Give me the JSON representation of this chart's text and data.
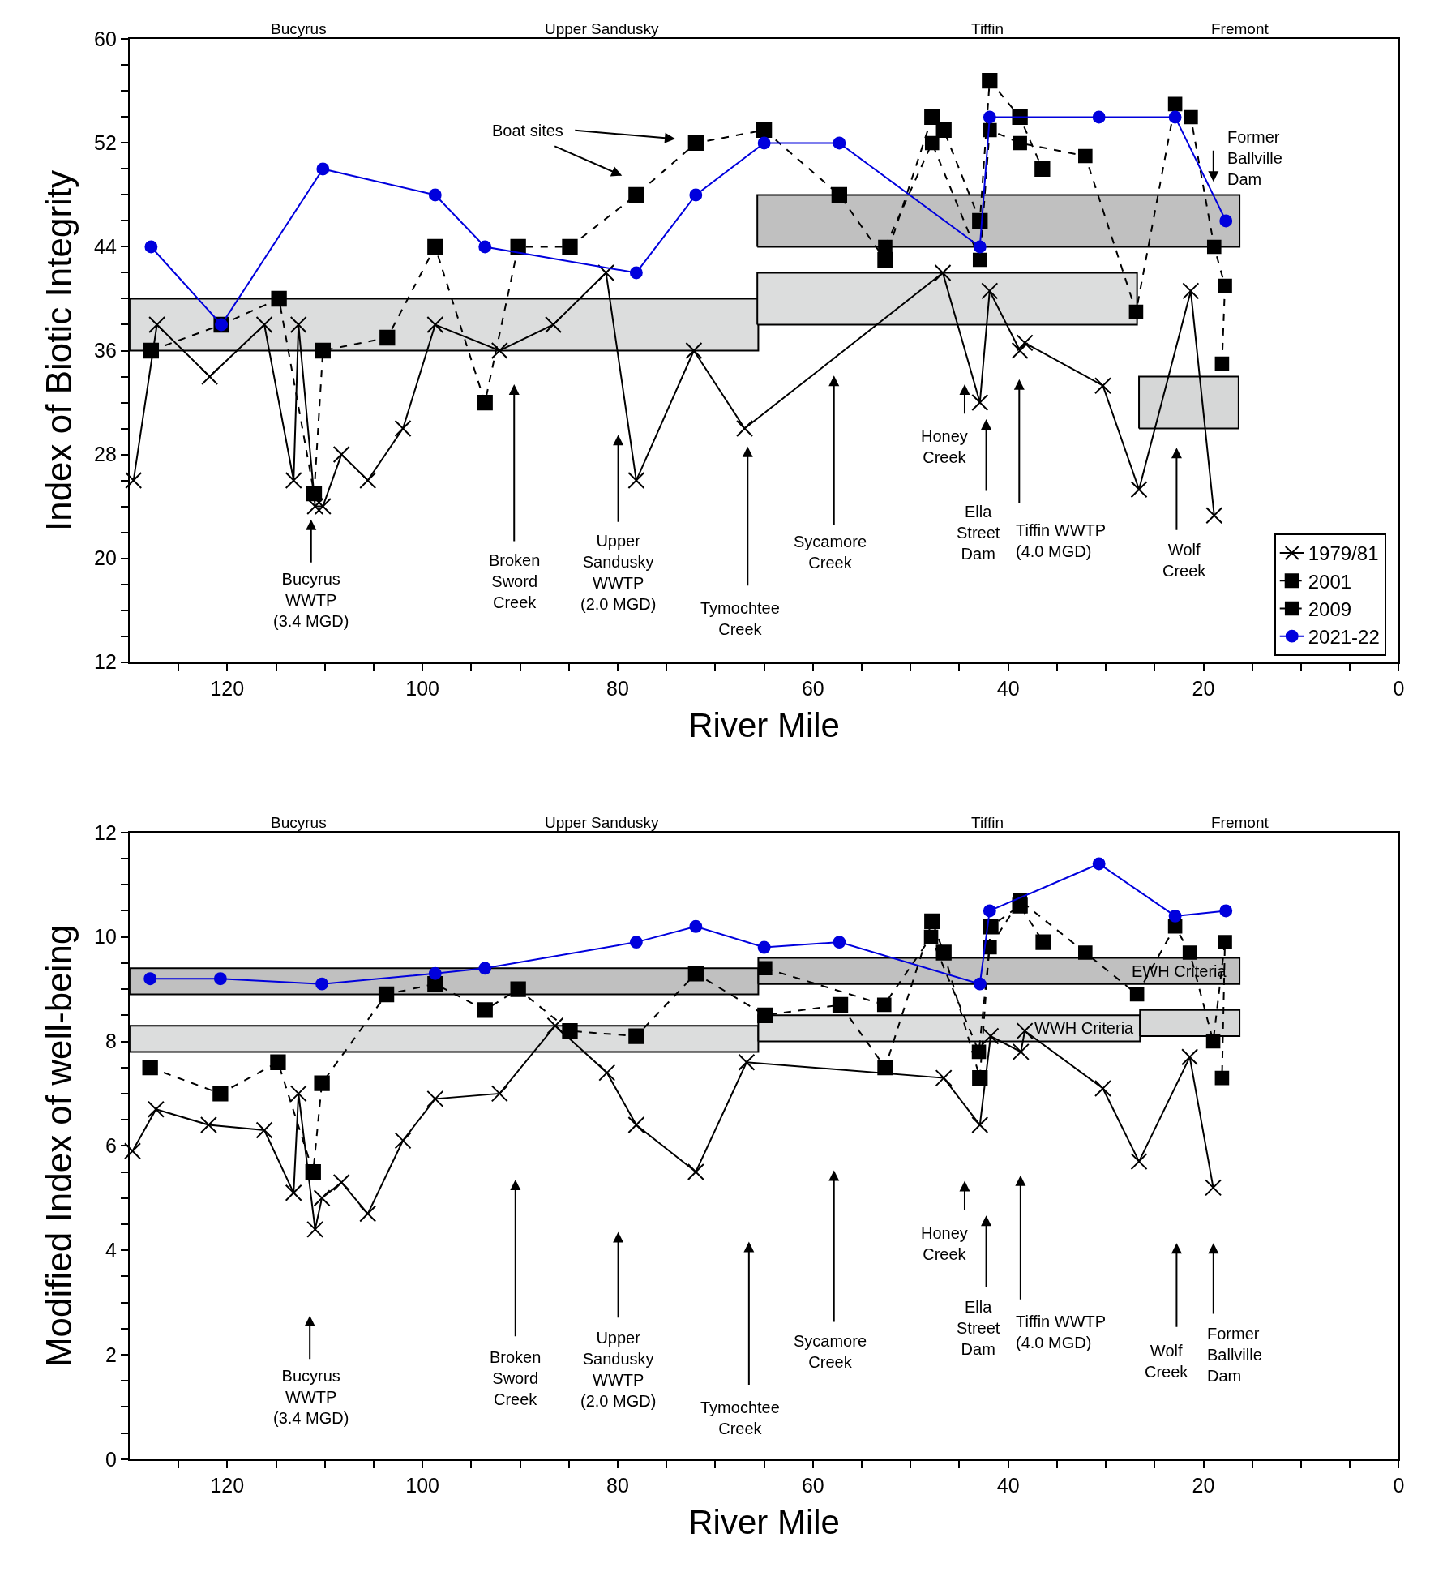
{
  "chart_data": [
    {
      "type": "line",
      "xlabel": "River Mile",
      "ylabel": "Index of Biotic Integrity",
      "xlim": [
        130,
        0
      ],
      "ylim": [
        12,
        60
      ],
      "xticks": [
        {
          "value": 125,
          "label": null
        },
        120,
        {
          "value": 115,
          "label": null
        },
        {
          "value": 110,
          "label": null
        },
        {
          "value": 105,
          "label": null
        },
        100,
        {
          "value": 95,
          "label": null
        },
        {
          "value": 90,
          "label": null
        },
        {
          "value": 85,
          "label": null
        },
        80,
        {
          "value": 75,
          "label": null
        },
        {
          "value": 70,
          "label": null
        },
        {
          "value": 65,
          "label": null
        },
        60,
        {
          "value": 55,
          "label": null
        },
        {
          "value": 50,
          "label": null
        },
        {
          "value": 45,
          "label": null
        },
        40,
        {
          "value": 35,
          "label": null
        },
        {
          "value": 30,
          "label": null
        },
        {
          "value": 25,
          "label": null
        },
        20,
        {
          "value": 15,
          "label": null
        },
        {
          "value": 10,
          "label": null
        },
        {
          "value": 5,
          "label": null
        },
        0
      ],
      "yticks": [
        12,
        {
          "value": 14,
          "label": null
        },
        {
          "value": 16,
          "label": null
        },
        {
          "value": 18,
          "label": null
        },
        20,
        {
          "value": 22,
          "label": null
        },
        {
          "value": 24,
          "label": null
        },
        {
          "value": 26,
          "label": null
        },
        28,
        {
          "value": 30,
          "label": null
        },
        {
          "value": 32,
          "label": null
        },
        {
          "value": 34,
          "label": null
        },
        36,
        {
          "value": 38,
          "label": null
        },
        {
          "value": 40,
          "label": null
        },
        {
          "value": 42,
          "label": null
        },
        44,
        {
          "value": 46,
          "label": null
        },
        {
          "value": 48,
          "label": null
        },
        {
          "value": 50,
          "label": null
        },
        52,
        {
          "value": 54,
          "label": null
        },
        {
          "value": 56,
          "label": null
        },
        {
          "value": 58,
          "label": null
        },
        60
      ],
      "legend": "bottom right",
      "series": [
        {
          "type": "area",
          "color": "#dcdddd",
          "x": [
            130,
            65.6,
            65.6,
            130,
            130
          ],
          "values": [
            36,
            36,
            40,
            40,
            36
          ]
        },
        {
          "type": "area",
          "color": "#dcdddd",
          "x": [
            65.7,
            26.8,
            26.8,
            65.7,
            65.7
          ],
          "values": [
            38,
            38,
            42,
            42,
            38
          ]
        },
        {
          "type": "area",
          "color": "#d6d7d7",
          "x": [
            26.6,
            16.4,
            16.4,
            26.6,
            26.6
          ],
          "values": [
            30,
            30,
            34,
            34,
            30
          ]
        },
        {
          "type": "area",
          "color": "#c0c0c0",
          "x": [
            65.7,
            16.3,
            16.3,
            65.7,
            65.7
          ],
          "values": [
            44,
            44,
            48,
            48,
            44
          ]
        },
        {
          "name": "1979/81",
          "color": "#000000",
          "marker": "cross",
          "line_style": "solid",
          "x": [
            129.6,
            127.2,
            121.8,
            116.2,
            113.2,
            112.7,
            111.0,
            110.2,
            108.3,
            105.6,
            102.0,
            98.7,
            92.1,
            86.6,
            81.2,
            78.1,
            72.2,
            67.0,
            46.7,
            42.9,
            41.9,
            38.8,
            38.3,
            30.3,
            26.6,
            21.3,
            18.9
          ],
          "values": [
            26,
            38,
            34,
            38,
            26,
            38,
            24,
            24,
            28,
            26,
            30,
            38,
            36,
            38,
            42,
            26,
            36,
            30,
            42,
            32,
            40.6,
            36,
            36.6,
            33.3,
            25.3,
            40.6,
            23.3
          ]
        },
        {
          "name": "2001",
          "color": "#000000",
          "marker": "square",
          "line_style": "dashed",
          "x": [
            127.8,
            120.6,
            114.7,
            111.1,
            110.2,
            103.6,
            98.7,
            93.6,
            90.2,
            84.9,
            78.1,
            72.0,
            65.0,
            57.3,
            52.6,
            47.8,
            46.6,
            42.9,
            41.9,
            38.8,
            36.5
          ],
          "values": [
            36,
            38,
            40,
            25,
            36,
            37,
            44,
            32,
            44,
            44,
            48,
            52,
            53,
            48,
            43,
            54,
            53,
            46,
            56.8,
            54,
            50
          ]
        },
        {
          "name": "2009",
          "color": "#000000",
          "marker": "square",
          "line_style": "dashed",
          "x": [
            52.6,
            47.8,
            42.9,
            41.9,
            38.8,
            32.1,
            26.9,
            22.9,
            21.3,
            18.9,
            17.8,
            18.1
          ],
          "values": [
            44,
            52,
            43,
            53,
            52,
            51,
            39,
            55,
            54,
            44,
            41,
            35
          ]
        },
        {
          "name": "2021-22",
          "color": "#0000dd",
          "marker": "circle",
          "line_style": "solid",
          "x": [
            127.8,
            120.6,
            110.2,
            98.7,
            93.6,
            78.1,
            72.0,
            65.0,
            57.3,
            42.9,
            41.9,
            30.7,
            22.9,
            17.7
          ],
          "values": [
            44,
            38,
            50,
            48,
            44,
            42,
            48,
            52,
            52,
            44,
            54,
            54,
            54,
            46
          ]
        }
      ],
      "annotations": [
        "Bucyrus",
        "Upper Sandusky",
        "Tiffin",
        "Fremont",
        "Boat sites",
        "Bucyrus\nWWTP\n(3.4 MGD)",
        "Broken\nSword\nCreek",
        "Upper\nSandusky\nWWTP\n(2.0 MGD)",
        "Tymochtee\nCreek",
        "Sycamore\nCreek",
        "Honey\nCreek",
        "Ella\nStreet\nDam",
        "Tiffin WWTP\n(4.0 MGD)",
        "Wolf\nCreek",
        "Former\nBallville\nDam"
      ]
    },
    {
      "type": "line",
      "xlabel": "River Mile",
      "ylabel": "Modified Index of well-being",
      "xlim": [
        130,
        0
      ],
      "ylim": [
        0,
        12
      ],
      "xticks": [
        {
          "value": 125,
          "label": null
        },
        120,
        {
          "value": 115,
          "label": null
        },
        {
          "value": 110,
          "label": null
        },
        {
          "value": 105,
          "label": null
        },
        100,
        {
          "value": 95,
          "label": null
        },
        {
          "value": 90,
          "label": null
        },
        {
          "value": 85,
          "label": null
        },
        80,
        {
          "value": 75,
          "label": null
        },
        {
          "value": 70,
          "label": null
        },
        {
          "value": 65,
          "label": null
        },
        60,
        {
          "value": 55,
          "label": null
        },
        {
          "value": 50,
          "label": null
        },
        {
          "value": 45,
          "label": null
        },
        40,
        {
          "value": 35,
          "label": null
        },
        {
          "value": 30,
          "label": null
        },
        {
          "value": 25,
          "label": null
        },
        20,
        {
          "value": 15,
          "label": null
        },
        {
          "value": 10,
          "label": null
        },
        {
          "value": 5,
          "label": null
        },
        0
      ],
      "yticks": [
        0,
        {
          "value": 0.5,
          "label": null
        },
        {
          "value": 1,
          "label": null
        },
        {
          "value": 1.5,
          "label": null
        },
        2,
        {
          "value": 2.5,
          "label": null
        },
        {
          "value": 3,
          "label": null
        },
        {
          "value": 3.5,
          "label": null
        },
        4,
        {
          "value": 4.5,
          "label": null
        },
        {
          "value": 5,
          "label": null
        },
        {
          "value": 5.5,
          "label": null
        },
        6,
        {
          "value": 6.5,
          "label": null
        },
        {
          "value": 7,
          "label": null
        },
        {
          "value": 7.5,
          "label": null
        },
        8,
        {
          "value": 8.5,
          "label": null
        },
        {
          "value": 9,
          "label": null
        },
        {
          "value": 9.5,
          "label": null
        },
        10,
        {
          "value": 10.5,
          "label": null
        },
        {
          "value": 11,
          "label": null
        },
        {
          "value": 11.5,
          "label": null
        },
        12
      ],
      "series": [
        {
          "type": "area",
          "color": "#c0c0c0",
          "x": [
            130,
            65.6,
            65.6,
            130,
            130
          ],
          "values": [
            8.9,
            8.9,
            9.4,
            9.4,
            8.9
          ]
        },
        {
          "type": "area",
          "color": "#dcdddd",
          "x": [
            130,
            65.6,
            65.6,
            130,
            130
          ],
          "values": [
            7.8,
            7.8,
            8.3,
            8.3,
            7.8
          ]
        },
        {
          "type": "area",
          "color": "#c0c0c0",
          "x": [
            65.6,
            16.3,
            16.3,
            65.6,
            65.6
          ],
          "values": [
            9.1,
            9.1,
            9.6,
            9.6,
            9.1
          ]
        },
        {
          "type": "area",
          "color": "#dcdddd",
          "x": [
            65.6,
            26.5,
            26.5,
            65.6,
            65.6
          ],
          "values": [
            8.0,
            8.0,
            8.5,
            8.5,
            8.0
          ]
        },
        {
          "type": "area",
          "color": "#d6d7d7",
          "x": [
            26.5,
            16.3,
            16.3,
            26.5,
            26.5
          ],
          "values": [
            8.1,
            8.1,
            8.6,
            8.6,
            8.1
          ]
        },
        {
          "color": "#000000",
          "marker": "cross",
          "line_style": "solid",
          "x": [
            129.7,
            127.3,
            121.9,
            116.2,
            113.2,
            112.7,
            111.0,
            110.3,
            108.3,
            105.6,
            102.0,
            98.7,
            92.1,
            86.4,
            81.1,
            78.1,
            72.0,
            66.8,
            46.6,
            42.9,
            41.8,
            38.7,
            38.3,
            30.3,
            26.6,
            21.4,
            19.0
          ],
          "values": [
            5.9,
            6.7,
            6.4,
            6.3,
            5.1,
            7.0,
            4.4,
            5.0,
            5.3,
            4.7,
            6.1,
            6.9,
            7.0,
            8.3,
            7.4,
            6.4,
            5.5,
            7.6,
            7.3,
            6.4,
            8.1,
            7.8,
            8.2,
            7.1,
            5.7,
            7.7,
            5.2
          ]
        },
        {
          "color": "#000000",
          "marker": "square",
          "line_style": "dashed",
          "x": [
            127.9,
            120.7,
            114.8,
            111.2,
            110.3,
            103.7,
            98.7,
            93.6,
            90.2,
            84.9,
            78.1,
            72.0,
            64.9,
            57.2,
            52.6,
            47.8,
            46.6,
            42.9,
            41.8,
            38.8,
            36.4
          ],
          "values": [
            7.5,
            7.0,
            7.6,
            5.5,
            7.2,
            8.9,
            9.1,
            8.6,
            9.0,
            8.2,
            8.1,
            9.3,
            8.5,
            8.7,
            7.5,
            10.3,
            9.7,
            7.3,
            10.2,
            10.6,
            9.9
          ]
        },
        {
          "color": "#000000",
          "marker": "square",
          "line_style": "dashed",
          "x": [
            64.9,
            52.7,
            47.9,
            43.0,
            41.9,
            38.8,
            32.1,
            26.8,
            22.9,
            21.4,
            19.0,
            17.8,
            18.1
          ],
          "values": [
            9.4,
            8.7,
            10.0,
            7.8,
            9.8,
            10.7,
            9.7,
            8.9,
            10.2,
            9.7,
            8.0,
            9.9,
            7.3
          ]
        },
        {
          "color": "#0000dd",
          "marker": "circle",
          "line_style": "solid",
          "x": [
            127.9,
            120.7,
            110.3,
            98.7,
            93.6,
            78.1,
            72.0,
            65.0,
            57.3,
            42.9,
            41.9,
            30.7,
            22.9,
            17.7
          ],
          "values": [
            9.2,
            9.2,
            9.1,
            9.3,
            9.4,
            9.9,
            10.2,
            9.8,
            9.9,
            9.1,
            10.5,
            11.4,
            10.4,
            10.5
          ]
        }
      ],
      "annotations": [
        "Bucyrus",
        "Upper Sandusky",
        "Tiffin",
        "Fremont",
        "EWH Criteria",
        "WWH Criteria",
        "Bucyrus\nWWTP\n(3.4 MGD)",
        "Broken\nSword\nCreek",
        "Upper\nSandusky\nWWTP\n(2.0 MGD)",
        "Tymochtee\nCreek",
        "Sycamore\nCreek",
        "Honey\nCreek",
        "Ella\nStreet\nDam",
        "Tiffin WWTP\n(4.0 MGD)",
        "Wolf\nCreek",
        "Former\nBallville\nDam"
      ]
    }
  ]
}
